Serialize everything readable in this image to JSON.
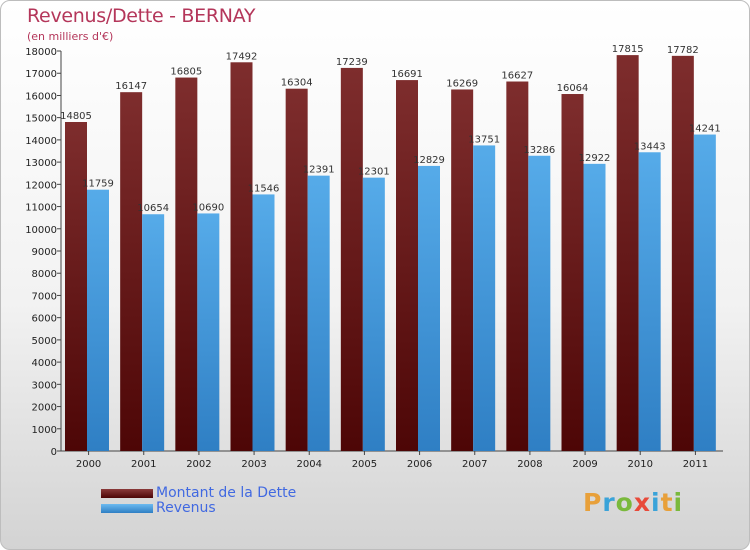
{
  "title": "Revenus/Dette - BERNAY",
  "subtitle": "(en milliers d'€)",
  "brand": {
    "letters": [
      "P",
      "r",
      "o",
      "x",
      "i",
      "t",
      "i"
    ],
    "colors": [
      "#e8a03a",
      "#3aa3d9",
      "#7ab93c",
      "#e84a3a",
      "#3aa3d9",
      "#e8a03a",
      "#7ab93c"
    ]
  },
  "chart_data": {
    "type": "bar",
    "title": "Revenus/Dette - BERNAY",
    "subtitle": "(en milliers d'€)",
    "categories": [
      "2000",
      "2001",
      "2002",
      "2003",
      "2004",
      "2005",
      "2006",
      "2007",
      "2008",
      "2009",
      "2010",
      "2011"
    ],
    "series": [
      {
        "name": "Montant de la Dette",
        "color": "#7b2a2a",
        "values": [
          14805,
          16147,
          16805,
          17492,
          16304,
          17239,
          16691,
          16269,
          16627,
          16064,
          17815,
          17782
        ]
      },
      {
        "name": "Revenus",
        "color": "#4ea3e6",
        "values": [
          11759,
          10654,
          10690,
          11546,
          12391,
          12301,
          12829,
          13751,
          13286,
          12922,
          13443,
          14241
        ]
      }
    ],
    "ylim": [
      0,
      18000
    ],
    "yticks": [
      0,
      1000,
      2000,
      3000,
      4000,
      5000,
      6000,
      7000,
      8000,
      9000,
      10000,
      11000,
      12000,
      13000,
      14000,
      15000,
      16000,
      17000,
      18000
    ],
    "grid": false,
    "legend": "bottom-left"
  }
}
